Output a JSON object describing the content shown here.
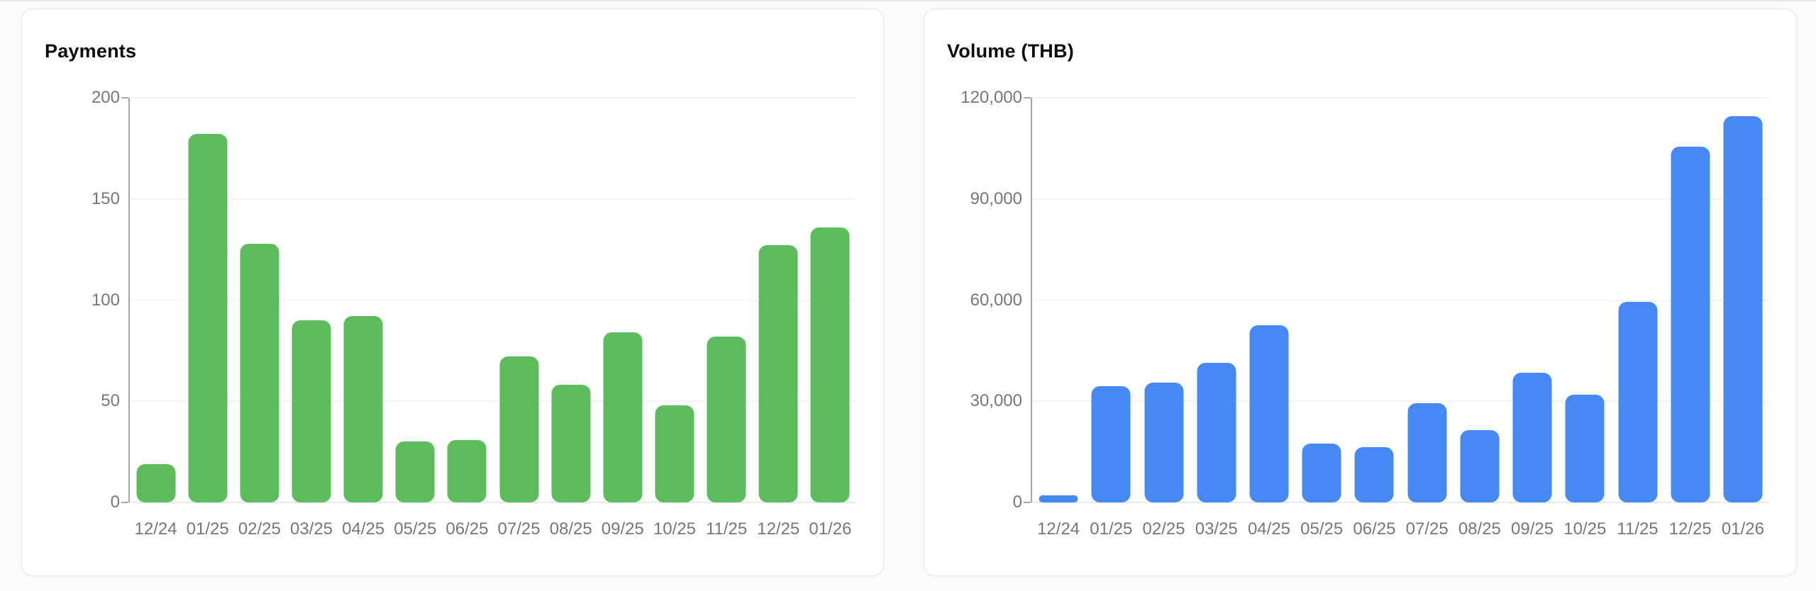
{
  "page": {
    "background": "#fbfbfc",
    "top_divider_color": "#e7e7ea"
  },
  "cards": [
    {
      "title": "Payments"
    },
    {
      "title": "Volume (THB)"
    }
  ],
  "chart_data": [
    {
      "type": "bar",
      "title": "Payments",
      "categories": [
        "12/24",
        "01/25",
        "02/25",
        "03/25",
        "04/25",
        "05/25",
        "06/25",
        "07/25",
        "08/25",
        "09/25",
        "10/25",
        "11/25",
        "12/25",
        "01/26"
      ],
      "values": [
        19,
        182,
        128,
        90,
        92,
        30,
        31,
        72,
        58,
        84,
        48,
        82,
        127,
        136
      ],
      "xlabel": "",
      "ylabel": "",
      "ylim": [
        0,
        200
      ],
      "yticks": [
        {
          "value": 0,
          "label": "0"
        },
        {
          "value": 50,
          "label": "50"
        },
        {
          "value": 100,
          "label": "100"
        },
        {
          "value": 150,
          "label": "150"
        },
        {
          "value": 200,
          "label": "200"
        }
      ],
      "grid": true,
      "legend": "none",
      "bar_color": "#5cbc5e"
    },
    {
      "type": "bar",
      "title": "Volume (THB)",
      "categories": [
        "12/24",
        "01/25",
        "02/25",
        "03/25",
        "04/25",
        "05/25",
        "06/25",
        "07/25",
        "08/25",
        "09/25",
        "10/25",
        "11/25",
        "12/25",
        "01/26"
      ],
      "values": [
        2000,
        34500,
        35500,
        41500,
        52500,
        17500,
        16500,
        29500,
        21500,
        38500,
        32000,
        59500,
        105500,
        114500
      ],
      "xlabel": "",
      "ylabel": "",
      "ylim": [
        0,
        120000
      ],
      "yticks": [
        {
          "value": 0,
          "label": "0"
        },
        {
          "value": 30000,
          "label": "30,000"
        },
        {
          "value": 60000,
          "label": "60,000"
        },
        {
          "value": 90000,
          "label": "90,000"
        },
        {
          "value": 120000,
          "label": "120,000"
        }
      ],
      "grid": true,
      "legend": "none",
      "bar_color": "#4689f3"
    }
  ]
}
